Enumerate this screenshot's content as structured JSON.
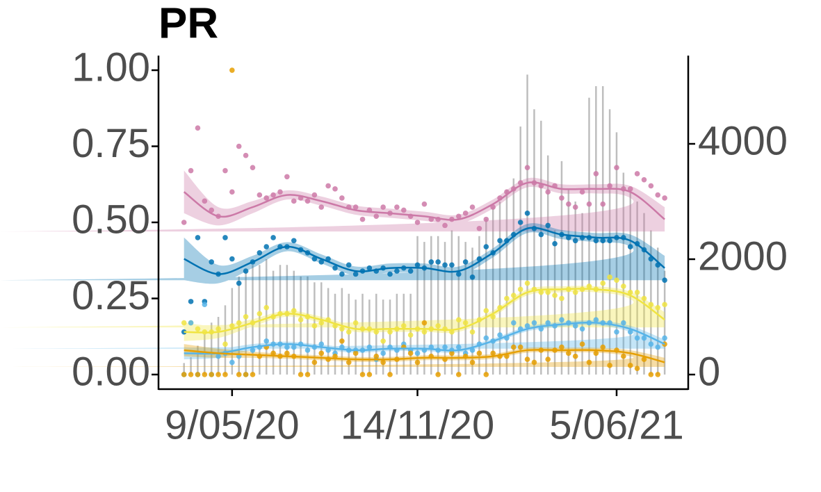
{
  "chart_data": {
    "type": "scatter",
    "title": "PR",
    "x": [
      "2020-03-21",
      "2020-03-28",
      "2020-04-04",
      "2020-04-11",
      "2020-04-18",
      "2020-04-25",
      "2020-05-02",
      "2020-05-09",
      "2020-05-16",
      "2020-05-23",
      "2020-05-30",
      "2020-06-06",
      "2020-06-13",
      "2020-06-20",
      "2020-06-27",
      "2020-07-04",
      "2020-07-11",
      "2020-07-18",
      "2020-07-25",
      "2020-08-01",
      "2020-08-08",
      "2020-08-15",
      "2020-08-22",
      "2020-08-29",
      "2020-09-05",
      "2020-09-12",
      "2020-09-19",
      "2020-09-26",
      "2020-10-03",
      "2020-10-10",
      "2020-10-17",
      "2020-10-24",
      "2020-10-31",
      "2020-11-07",
      "2020-11-14",
      "2020-11-21",
      "2020-11-28",
      "2020-12-05",
      "2020-12-12",
      "2020-12-19",
      "2020-12-26",
      "2021-01-02",
      "2021-01-09",
      "2021-01-16",
      "2021-01-23",
      "2021-01-30",
      "2021-02-06",
      "2021-02-13",
      "2021-02-20",
      "2021-02-27",
      "2021-03-06",
      "2021-03-13",
      "2021-03-20",
      "2021-03-27",
      "2021-04-03",
      "2021-04-10",
      "2021-04-17",
      "2021-04-24",
      "2021-05-01",
      "2021-05-08",
      "2021-05-15",
      "2021-05-22",
      "2021-05-29",
      "2021-06-05",
      "2021-06-12",
      "2021-06-19",
      "2021-06-26",
      "2021-07-03",
      "2021-07-10",
      "2021-07-17",
      "2021-07-24"
    ],
    "xlim": [
      "2020-02-24",
      "2021-08-17"
    ],
    "xticks": [
      {
        "value": "2020-05-09",
        "label": "9/05/20"
      },
      {
        "value": "2020-11-14",
        "label": "14/11/20"
      },
      {
        "value": "2021-06-05",
        "label": "5/06/21"
      }
    ],
    "ylim": [
      -0.048,
      1.048
    ],
    "yticks": [
      {
        "value": 0,
        "label": "0.00"
      },
      {
        "value": 0.25,
        "label": "0.25"
      },
      {
        "value": 0.5,
        "label": "0.50"
      },
      {
        "value": 0.75,
        "label": "0.75"
      },
      {
        "value": 1,
        "label": "1.00"
      }
    ],
    "y2lim": [
      -253,
      5530
    ],
    "y2ticks": [
      0,
      2000,
      4000
    ],
    "bars": {
      "type": "bar",
      "axis": "y2",
      "color": "#bebebe",
      "values": [
        200,
        300,
        500,
        700,
        900,
        1000,
        1200,
        1500,
        1700,
        1800,
        1900,
        1900,
        2000,
        1800,
        1900,
        1900,
        1800,
        1700,
        1700,
        1600,
        1600,
        1500,
        1400,
        1500,
        1400,
        1300,
        1400,
        1300,
        1400,
        1300,
        1300,
        1400,
        1400,
        1400,
        2400,
        2300,
        2400,
        2400,
        2300,
        2500,
        2400,
        2300,
        2200,
        2400,
        2700,
        2900,
        3000,
        3200,
        3400,
        4300,
        5200,
        4600,
        4400,
        3800,
        2500,
        3700,
        3200,
        3000,
        2800,
        4800,
        5000,
        5000,
        4600,
        4200,
        3500,
        3200,
        3000,
        2800,
        2500,
        2200,
        1800
      ]
    },
    "series": [
      {
        "color": "#cc79a7",
        "values": [
          0.5,
          0.67,
          0.81,
          0.57,
          0.54,
          0.52,
          0.67,
          0.6,
          0.75,
          0.72,
          0.68,
          0.59,
          0.58,
          0.59,
          0.6,
          0.65,
          0.57,
          0.58,
          0.57,
          0.59,
          0.55,
          0.62,
          0.61,
          0.58,
          0.55,
          0.55,
          0.51,
          0.54,
          0.52,
          0.55,
          0.53,
          0.55,
          0.54,
          0.52,
          0.5,
          0.56,
          0.51,
          0.51,
          0.49,
          0.51,
          0.52,
          0.53,
          0.55,
          0.48,
          0.51,
          0.55,
          0.58,
          0.6,
          0.61,
          0.63,
          0.68,
          0.63,
          0.62,
          0.6,
          0.62,
          0.58,
          0.56,
          0.55,
          0.6,
          0.56,
          0.66,
          0.56,
          0.62,
          0.68,
          0.61,
          0.61,
          0.66,
          0.64,
          0.62,
          0.59,
          0.58
        ]
      },
      {
        "color": "#0072b2",
        "values": [
          0.14,
          0.24,
          0.45,
          0.24,
          0.37,
          0.33,
          0.45,
          0.38,
          0.3,
          0.34,
          0.37,
          0.4,
          0.42,
          0.45,
          0.42,
          0.42,
          0.44,
          0.41,
          0.4,
          0.38,
          0.37,
          0.38,
          0.35,
          0.33,
          0.36,
          0.33,
          0.34,
          0.35,
          0.34,
          0.35,
          0.33,
          0.34,
          0.35,
          0.34,
          0.36,
          0.35,
          0.37,
          0.37,
          0.36,
          0.36,
          0.33,
          0.37,
          0.32,
          0.38,
          0.42,
          0.4,
          0.44,
          0.44,
          0.46,
          0.5,
          0.53,
          0.48,
          0.46,
          0.49,
          0.43,
          0.46,
          0.45,
          0.44,
          0.45,
          0.45,
          0.44,
          0.44,
          0.44,
          0.45,
          0.45,
          0.42,
          0.43,
          0.41,
          0.38,
          0.36,
          0.31
        ]
      },
      {
        "color": "#f0e442",
        "values": [
          0.17,
          0.17,
          0.15,
          0.14,
          0.14,
          0.15,
          0.1,
          0.16,
          0.17,
          0.19,
          0.17,
          0.2,
          0.22,
          0.19,
          0.2,
          0.2,
          0.21,
          0.18,
          0.19,
          0.16,
          0.17,
          0.18,
          0.16,
          0.15,
          0.14,
          0.17,
          0.15,
          0.15,
          0.14,
          0.11,
          0.14,
          0.15,
          0.16,
          0.13,
          0.15,
          0.14,
          0.15,
          0.16,
          0.15,
          0.14,
          0.18,
          0.17,
          0.14,
          0.18,
          0.21,
          0.19,
          0.22,
          0.25,
          0.26,
          0.28,
          0.3,
          0.28,
          0.27,
          0.27,
          0.26,
          0.25,
          0.28,
          0.27,
          0.28,
          0.29,
          0.28,
          0.3,
          0.32,
          0.31,
          0.29,
          0.27,
          0.27,
          0.25,
          0.23,
          0.22,
          0.23
        ]
      },
      {
        "color": "#56b4e9",
        "values": [
          0.0,
          0.17,
          0.0,
          0.23,
          0.0,
          0.06,
          0.07,
          0.04,
          0.06,
          0.0,
          0.08,
          0.09,
          0.11,
          0.1,
          0.1,
          0.09,
          0.09,
          0.1,
          0.08,
          0.09,
          0.1,
          0.08,
          0.07,
          0.09,
          0.08,
          0.08,
          0.08,
          0.09,
          0.05,
          0.07,
          0.09,
          0.08,
          0.1,
          0.08,
          0.07,
          0.08,
          0.09,
          0.08,
          0.09,
          0.08,
          0.09,
          0.07,
          0.08,
          0.1,
          0.12,
          0.11,
          0.13,
          0.12,
          0.17,
          0.15,
          0.16,
          0.17,
          0.15,
          0.17,
          0.16,
          0.18,
          0.17,
          0.16,
          0.15,
          0.17,
          0.18,
          0.17,
          0.17,
          0.14,
          0.17,
          0.14,
          0.12,
          0.12,
          0.1,
          0.09,
          0.12
        ]
      },
      {
        "color": "#e69f00",
        "values": [
          0.0,
          0.0,
          0.0,
          0.0,
          0.0,
          0.0,
          0.0,
          1.0,
          0.0,
          0.0,
          0.0,
          0.06,
          0.09,
          0.07,
          0.06,
          0.07,
          0.06,
          0.0,
          0.0,
          0.04,
          0.07,
          0.05,
          0.06,
          0.11,
          0.04,
          0.07,
          0.0,
          0.0,
          0.06,
          0.04,
          0.0,
          0.05,
          0.09,
          0.07,
          0.04,
          0.17,
          0.06,
          0.0,
          0.05,
          0.07,
          0.0,
          0.06,
          0.04,
          0.07,
          0.0,
          0.07,
          0.06,
          0.06,
          0.09,
          0.09,
          0.05,
          0.04,
          0.08,
          0.05,
          0.08,
          0.09,
          0.07,
          0.06,
          0.1,
          0.04,
          0.07,
          0.09,
          0.03,
          0.08,
          0.06,
          0.03,
          0.02,
          0.05,
          0.0,
          0.0,
          0.1
        ]
      }
    ],
    "smooth": {
      "x": [
        "2020-03-21",
        "2020-04-25",
        "2020-05-30",
        "2020-07-04",
        "2020-08-08",
        "2020-09-12",
        "2020-10-17",
        "2020-11-21",
        "2020-12-26",
        "2021-01-30",
        "2021-03-06",
        "2021-04-10",
        "2021-05-15",
        "2021-06-19",
        "2021-07-24"
      ],
      "series": [
        {
          "color": "#cc79a7",
          "values": [
            0.6,
            0.52,
            0.55,
            0.59,
            0.57,
            0.54,
            0.53,
            0.52,
            0.51,
            0.56,
            0.63,
            0.61,
            0.61,
            0.6,
            0.51
          ],
          "se": [
            0.07,
            0.03,
            0.02,
            0.015,
            0.015,
            0.015,
            0.015,
            0.015,
            0.015,
            0.015,
            0.015,
            0.015,
            0.015,
            0.02,
            0.04
          ]
        },
        {
          "color": "#0072b2",
          "values": [
            0.38,
            0.33,
            0.37,
            0.42,
            0.38,
            0.34,
            0.35,
            0.35,
            0.34,
            0.4,
            0.48,
            0.46,
            0.45,
            0.44,
            0.35
          ],
          "se": [
            0.07,
            0.03,
            0.02,
            0.015,
            0.015,
            0.015,
            0.015,
            0.015,
            0.015,
            0.015,
            0.015,
            0.015,
            0.015,
            0.02,
            0.04
          ]
        },
        {
          "color": "#f0e442",
          "values": [
            0.14,
            0.14,
            0.17,
            0.2,
            0.18,
            0.15,
            0.15,
            0.15,
            0.15,
            0.2,
            0.27,
            0.28,
            0.28,
            0.26,
            0.18
          ],
          "se": [
            0.03,
            0.02,
            0.012,
            0.01,
            0.01,
            0.01,
            0.01,
            0.01,
            0.01,
            0.01,
            0.01,
            0.01,
            0.01,
            0.012,
            0.025
          ]
        },
        {
          "color": "#56b4e9",
          "values": [
            0.07,
            0.07,
            0.09,
            0.1,
            0.09,
            0.08,
            0.085,
            0.085,
            0.08,
            0.11,
            0.15,
            0.165,
            0.17,
            0.15,
            0.1
          ],
          "se": [
            0.02,
            0.015,
            0.01,
            0.008,
            0.008,
            0.008,
            0.008,
            0.008,
            0.008,
            0.008,
            0.008,
            0.008,
            0.008,
            0.01,
            0.015
          ]
        },
        {
          "color": "#e69f00",
          "values": [
            0.08,
            0.07,
            0.065,
            0.06,
            0.055,
            0.05,
            0.05,
            0.055,
            0.055,
            0.06,
            0.08,
            0.08,
            0.08,
            0.07,
            0.04
          ],
          "se": [
            0.02,
            0.015,
            0.01,
            0.008,
            0.008,
            0.008,
            0.008,
            0.008,
            0.008,
            0.008,
            0.008,
            0.008,
            0.008,
            0.01,
            0.015
          ]
        }
      ]
    }
  }
}
